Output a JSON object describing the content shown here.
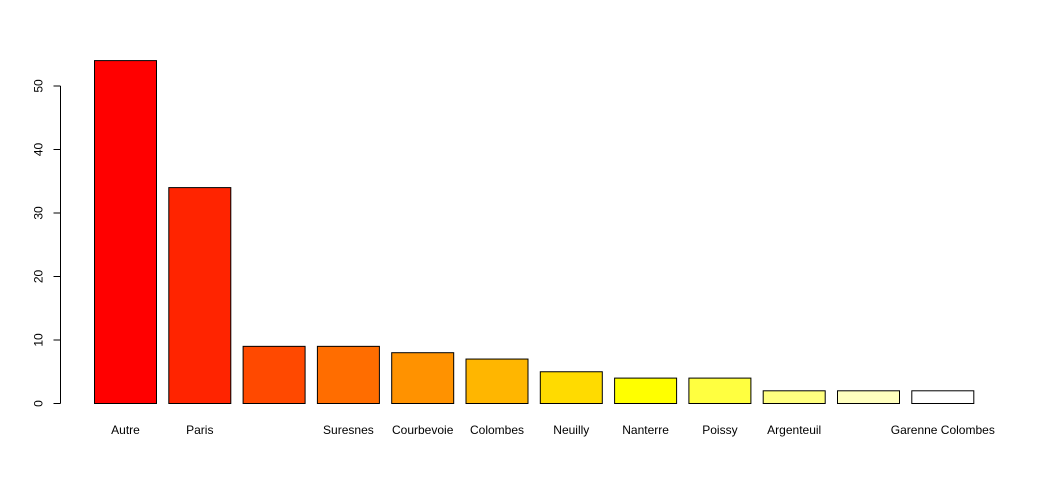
{
  "chart_data": {
    "type": "bar",
    "title": "",
    "xlabel": "",
    "ylabel": "",
    "ylim": [
      0,
      54
    ],
    "yticks": [
      0,
      10,
      20,
      30,
      40,
      50
    ],
    "grid": false,
    "categories": [
      "Autre",
      "Paris",
      "",
      "Suresnes",
      "Courbevoie",
      "Colombes",
      "Neuilly",
      "Nanterre",
      "Poissy",
      "Argenteuil",
      "",
      "Garenne Colombes"
    ],
    "values": [
      54,
      34,
      9,
      9,
      8,
      7,
      5,
      4,
      4,
      2,
      2,
      2
    ],
    "colors": [
      "#FF0000",
      "#FF2400",
      "#FF4900",
      "#FF6D00",
      "#FF9200",
      "#FFB600",
      "#FFDB00",
      "#FFFF00",
      "#FFFF40",
      "#FFFF80",
      "#FFFFBF",
      "#FFFFFF"
    ]
  }
}
